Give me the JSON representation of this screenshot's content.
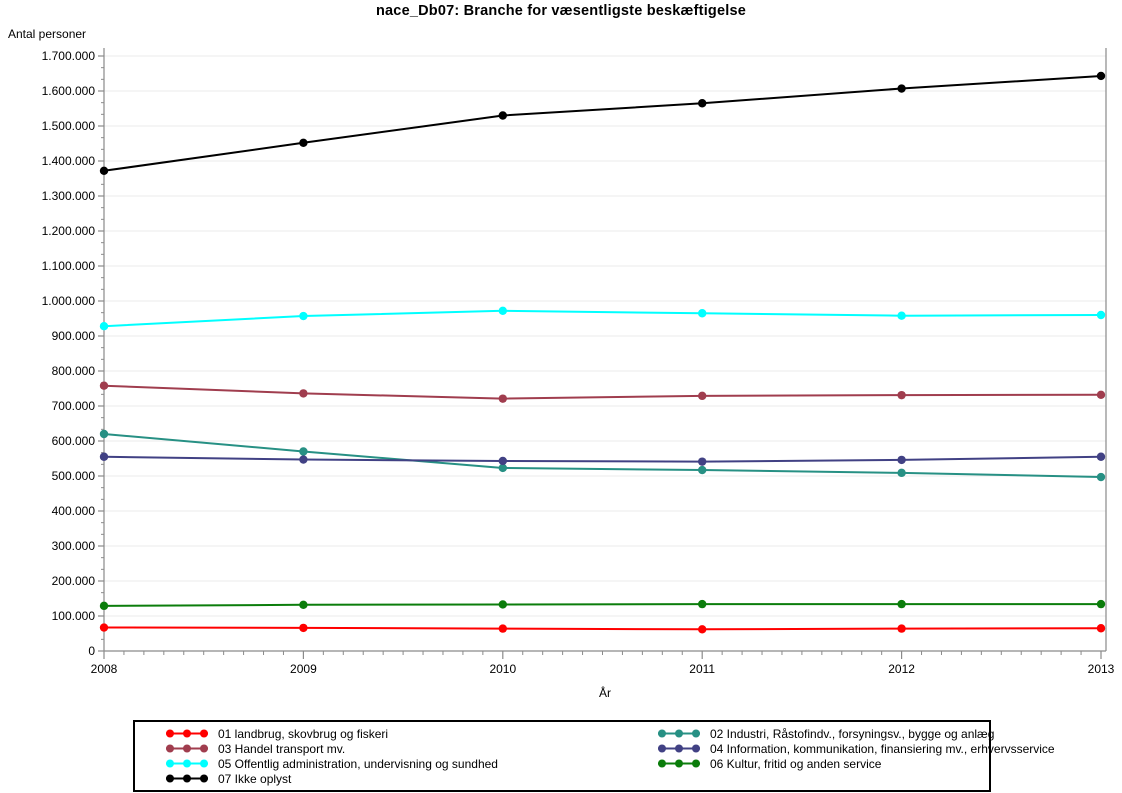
{
  "chart_data": {
    "type": "line",
    "title": "nace_Db07: Branche for væsentligste beskæftigelse",
    "xlabel": "År",
    "ylabel": "Antal personer",
    "categories": [
      "2008",
      "2009",
      "2010",
      "2011",
      "2012",
      "2013"
    ],
    "ylim": [
      0,
      1700000
    ],
    "ytick_step": 100000,
    "ytick_labels": [
      "0",
      "100.000",
      "200.000",
      "300.000",
      "400.000",
      "500.000",
      "600.000",
      "700.000",
      "800.000",
      "900.000",
      "1.000.000",
      "1.100.000",
      "1.200.000",
      "1.300.000",
      "1.400.000",
      "1.500.000",
      "1.600.000",
      "1.700.000"
    ],
    "grid": true,
    "legend_position": "bottom",
    "marker": "filled-circle",
    "series": [
      {
        "name": "01 landbrug, skovbrug og fiskeri",
        "color": "#ff0000",
        "values": [
          67000,
          66000,
          64000,
          62000,
          64000,
          65000
        ]
      },
      {
        "name": "02 Industri, Råstofindv., forsyningsv., bygge og anlæg",
        "color": "#279084",
        "values": [
          620000,
          570000,
          523000,
          517000,
          509000,
          497000
        ]
      },
      {
        "name": "03 Handel transport mv.",
        "color": "#a03d4e",
        "values": [
          758000,
          736000,
          721000,
          729000,
          731000,
          732000
        ]
      },
      {
        "name": "04 Information, kommunikation, finansiering mv., erhvervsservice",
        "color": "#414184",
        "values": [
          555000,
          547000,
          543000,
          541000,
          546000,
          555000
        ]
      },
      {
        "name": "05 Offentlig administration, undervisning og sundhed",
        "color": "#00ffff",
        "values": [
          928000,
          957000,
          972000,
          965000,
          958000,
          960000
        ]
      },
      {
        "name": "06 Kultur, fritid og anden service",
        "color": "#0b7d0b",
        "values": [
          129000,
          132000,
          133000,
          134000,
          134000,
          134000
        ]
      },
      {
        "name": "07 Ikke oplyst",
        "color": "#000000",
        "values": [
          1372000,
          1452000,
          1530000,
          1565000,
          1607000,
          1643000
        ]
      }
    ],
    "colors": {
      "gridline": "#ebebeb",
      "axis": "#8a8a8a",
      "tick": "#8a8a8a",
      "label": "#000000",
      "legend_border": "#000000"
    }
  }
}
